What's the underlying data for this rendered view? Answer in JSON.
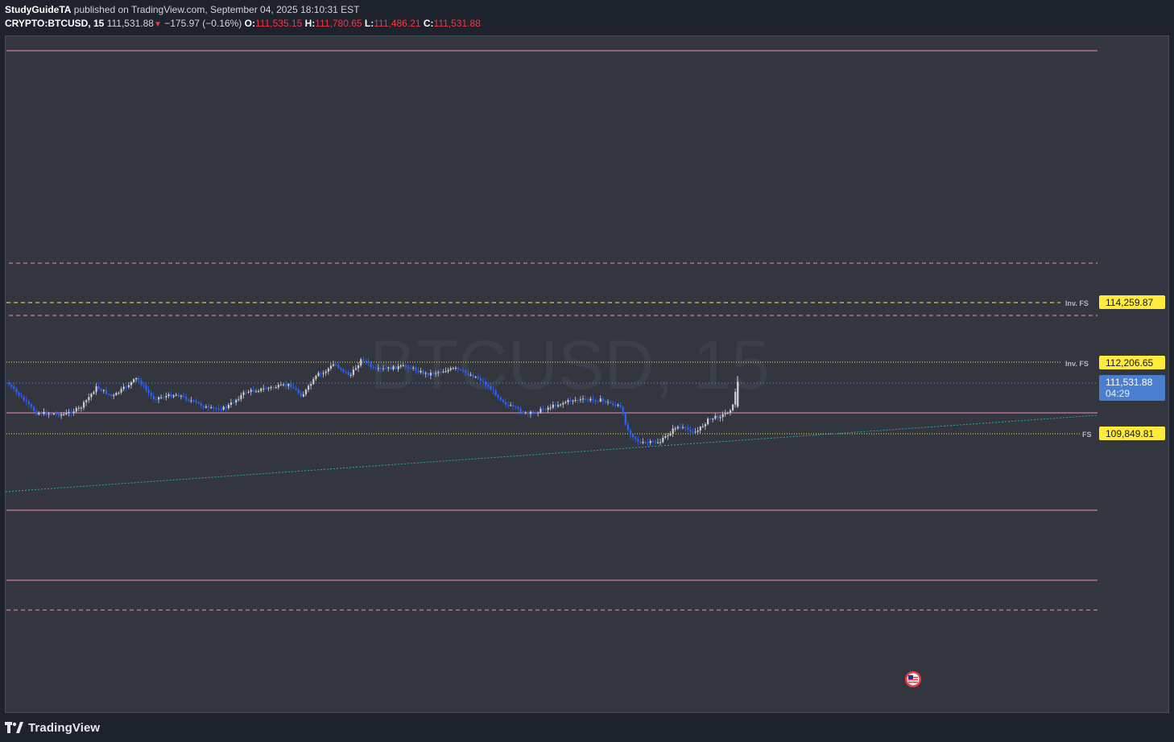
{
  "header": {
    "author": "StudyGuideTA",
    "published_text": "published on TradingView.com, September 04, 2025 18:10:31 EST",
    "symbol": "CRYPTO:BTCUSD, 15",
    "last": "111,531.88",
    "change": "−175.97 (−0.16%)",
    "o_label": "O:",
    "o_value": "111,535.15",
    "h_label": "H:",
    "h_value": "111,780.65",
    "l_label": "L:",
    "l_value": "111,486.21",
    "c_label": "C:",
    "c_value": "111,531.88"
  },
  "watermark": "BTCUSD, 15",
  "price_labels": [
    {
      "text": "114,259.87",
      "tag": "Inv. FS",
      "color": "#ffeb3b",
      "price": 114259.87
    },
    {
      "text": "112,206.65",
      "tag": "Inv. FS",
      "color": "#ffeb3b",
      "price": 112206.65
    },
    {
      "text": "109,849.81",
      "tag": "FS",
      "color": "#ffeb3b",
      "price": 109849.81
    }
  ],
  "current_price": {
    "text": "111,531.88",
    "countdown": "04:29",
    "color": "#4a7fd0",
    "price": 111531.88
  },
  "colors": {
    "pink": "#f48fb1",
    "yellow": "#ffeb3b",
    "teal": "#26a69a",
    "candle_up": "#c9ccd4",
    "candle_down": "#2862ff"
  },
  "footer": {
    "brand": "TradingView"
  },
  "event_icon": "us-flag-icon"
}
